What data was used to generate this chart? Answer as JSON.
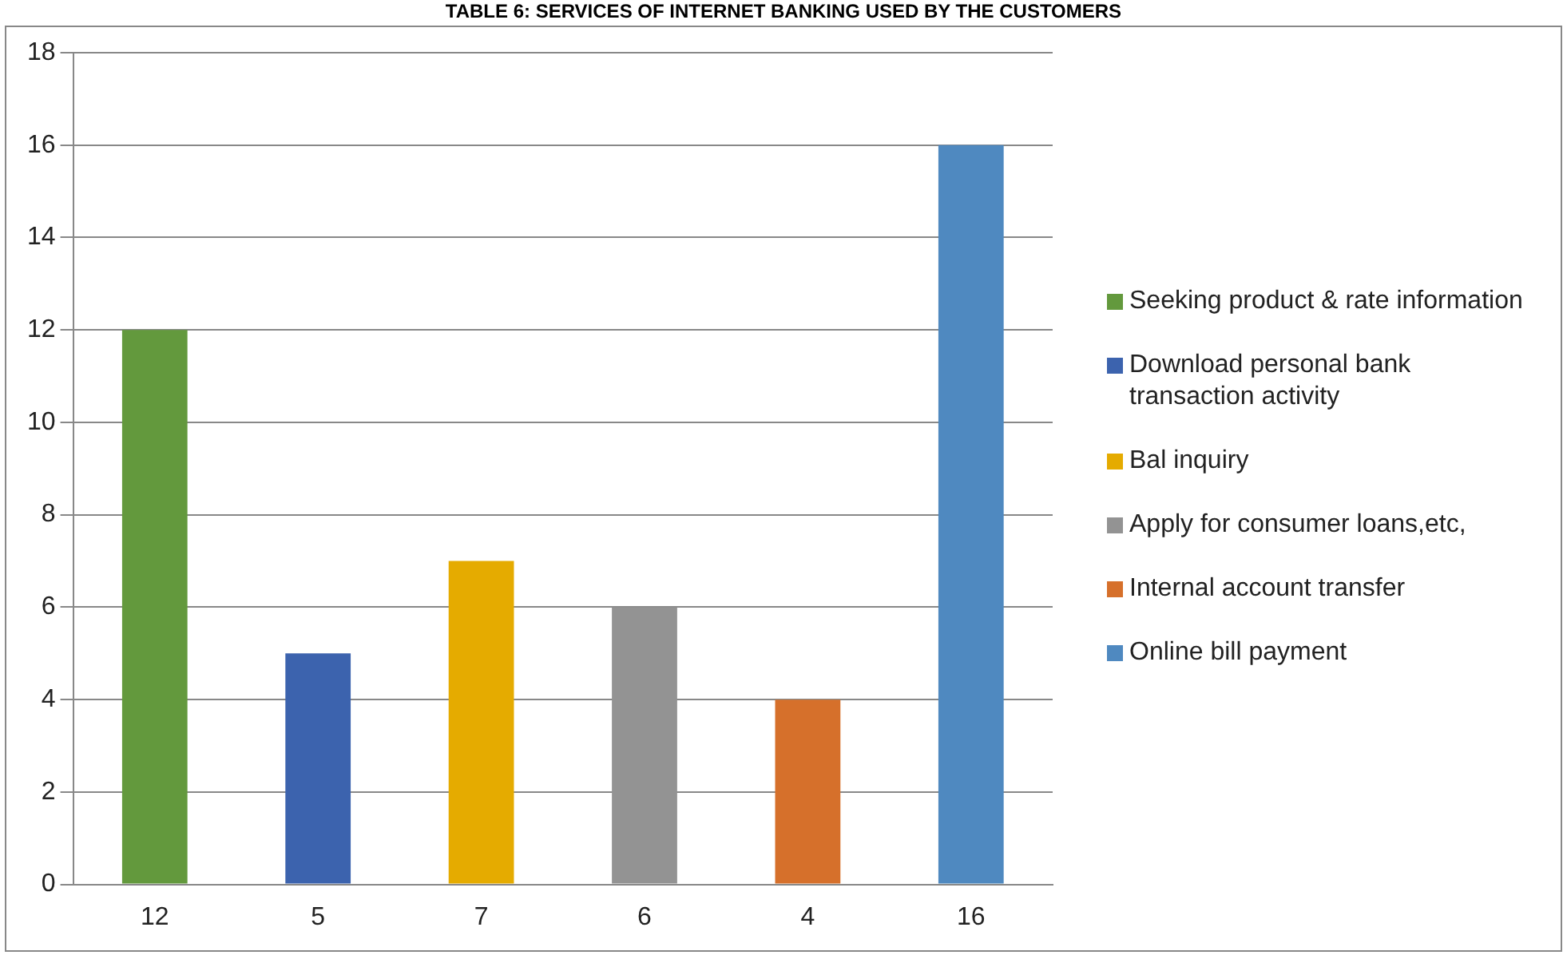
{
  "chart_data": {
    "type": "bar",
    "title": "TABLE 6: SERVICES OF INTERNET BANKING USED BY THE CUSTOMERS",
    "categories": [
      "12",
      "5",
      "7",
      "6",
      "4",
      "16"
    ],
    "series": [
      {
        "name": "Seeking product & rate information",
        "color": "#63993d",
        "values": [
          12,
          null,
          null,
          null,
          null,
          null
        ]
      },
      {
        "name": "Download personal bank transaction activity",
        "color": "#3c63ae",
        "values": [
          null,
          5,
          null,
          null,
          null,
          null
        ]
      },
      {
        "name": "Bal inquiry",
        "color": "#e5ab00",
        "values": [
          null,
          null,
          7,
          null,
          null,
          null
        ]
      },
      {
        "name": "Apply for consumer loans,etc,",
        "color": "#939393",
        "values": [
          null,
          null,
          null,
          6,
          null,
          null
        ]
      },
      {
        "name": "Internal account transfer",
        "color": "#d6702b",
        "values": [
          null,
          null,
          null,
          null,
          4,
          null
        ]
      },
      {
        "name": "Online bill payment",
        "color": "#4f89c0",
        "values": [
          null,
          null,
          null,
          null,
          null,
          16
        ]
      }
    ],
    "ylim": [
      0,
      18
    ],
    "yticks": [
      0,
      2,
      4,
      6,
      8,
      10,
      12,
      14,
      16,
      18
    ],
    "grid": "y",
    "legend": "right"
  }
}
